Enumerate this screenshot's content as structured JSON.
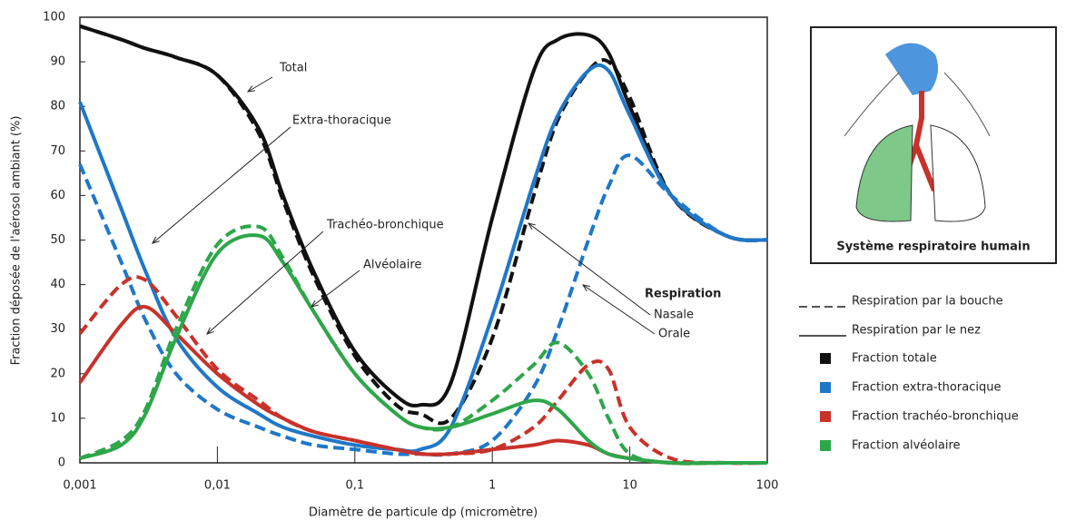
{
  "chart_data": {
    "type": "line",
    "xscale": "log",
    "x": [
      0.001,
      0.002,
      0.003,
      0.005,
      0.01,
      0.02,
      0.03,
      0.05,
      0.1,
      0.2,
      0.3,
      0.5,
      1,
      2,
      3,
      5,
      7,
      10,
      20,
      50,
      100
    ],
    "series": [
      {
        "color": "#111111",
        "dashed": false,
        "values": [
          98,
          95,
          93,
          91,
          87,
          75,
          60,
          43,
          25,
          15,
          13,
          18,
          55,
          88,
          95,
          96,
          92,
          80,
          60,
          51,
          50
        ]
      },
      {
        "color": "#111111",
        "dashed": true,
        "values": [
          98,
          95,
          93,
          91,
          87,
          74,
          59,
          42,
          24,
          13,
          11,
          10,
          28,
          60,
          77,
          88,
          90,
          82,
          60,
          51,
          50
        ]
      },
      {
        "color": "#1f77c8",
        "dashed": false,
        "values": [
          81,
          57,
          43,
          28,
          17,
          11,
          8,
          6,
          4,
          3,
          3,
          8,
          33,
          63,
          78,
          88,
          88,
          78,
          60,
          51,
          50
        ]
      },
      {
        "color": "#1f77c8",
        "dashed": true,
        "values": [
          67,
          45,
          32,
          20,
          12,
          8,
          6,
          4,
          3,
          2,
          2,
          2,
          5,
          17,
          30,
          50,
          62,
          69,
          60,
          51,
          50
        ]
      },
      {
        "color": "#c8322a",
        "dashed": false,
        "values": [
          18,
          31,
          35,
          29,
          20,
          13,
          10,
          7,
          5,
          3,
          2,
          2,
          3,
          4,
          5,
          4,
          2,
          1,
          0,
          0,
          0
        ]
      },
      {
        "color": "#c8322a",
        "dashed": true,
        "values": [
          29,
          40,
          41,
          33,
          21,
          14,
          10,
          7,
          5,
          3,
          2,
          2,
          3,
          8,
          14,
          22,
          21,
          8,
          1,
          0,
          0
        ]
      },
      {
        "color": "#2ea64a",
        "dashed": false,
        "values": [
          1,
          4,
          11,
          28,
          47,
          51,
          45,
          34,
          20,
          11,
          8,
          8,
          11,
          14,
          12,
          5,
          2,
          1,
          0,
          0,
          0
        ]
      },
      {
        "color": "#2ea64a",
        "dashed": true,
        "values": [
          1,
          5,
          12,
          30,
          49,
          53,
          46,
          34,
          20,
          11,
          8,
          8,
          14,
          22,
          27,
          20,
          10,
          2,
          0,
          0,
          0
        ]
      }
    ],
    "xlim": [
      0.001,
      100
    ],
    "xticks": [
      {
        "value": 0.001,
        "label": "0,001"
      },
      {
        "value": 0.01,
        "label": "0,01"
      },
      {
        "value": 0.1,
        "label": "0,1"
      },
      1,
      10,
      100
    ],
    "ylim": [
      0,
      100
    ],
    "yticks": [
      0,
      10,
      20,
      30,
      40,
      50,
      60,
      70,
      80,
      90,
      100
    ],
    "xlabel": "Diamètre de particule dp (micromètre)",
    "ylabel": "Fraction déposée de l'aérosol ambiant (%)",
    "annotations": [
      "Total",
      "Extra-thoracique",
      "Trachéo-bronchique",
      "Alvéolaire",
      "Respiration",
      "Nasale",
      "Orale"
    ],
    "legend": {
      "styles": [
        {
          "label": "Respiration par la bouche",
          "dashed": true
        },
        {
          "label": "Respiration par le nez",
          "dashed": false
        }
      ],
      "colors": [
        {
          "label": "Fraction totale",
          "color": "#111111"
        },
        {
          "label": "Fraction extra-thoracique",
          "color": "#1f77c8"
        },
        {
          "label": "Fraction trachéo-bronchique",
          "color": "#c8322a"
        },
        {
          "label": "Fraction alvéolaire",
          "color": "#2ea64a"
        }
      ]
    },
    "image_caption": "Système respiratoire humain"
  }
}
